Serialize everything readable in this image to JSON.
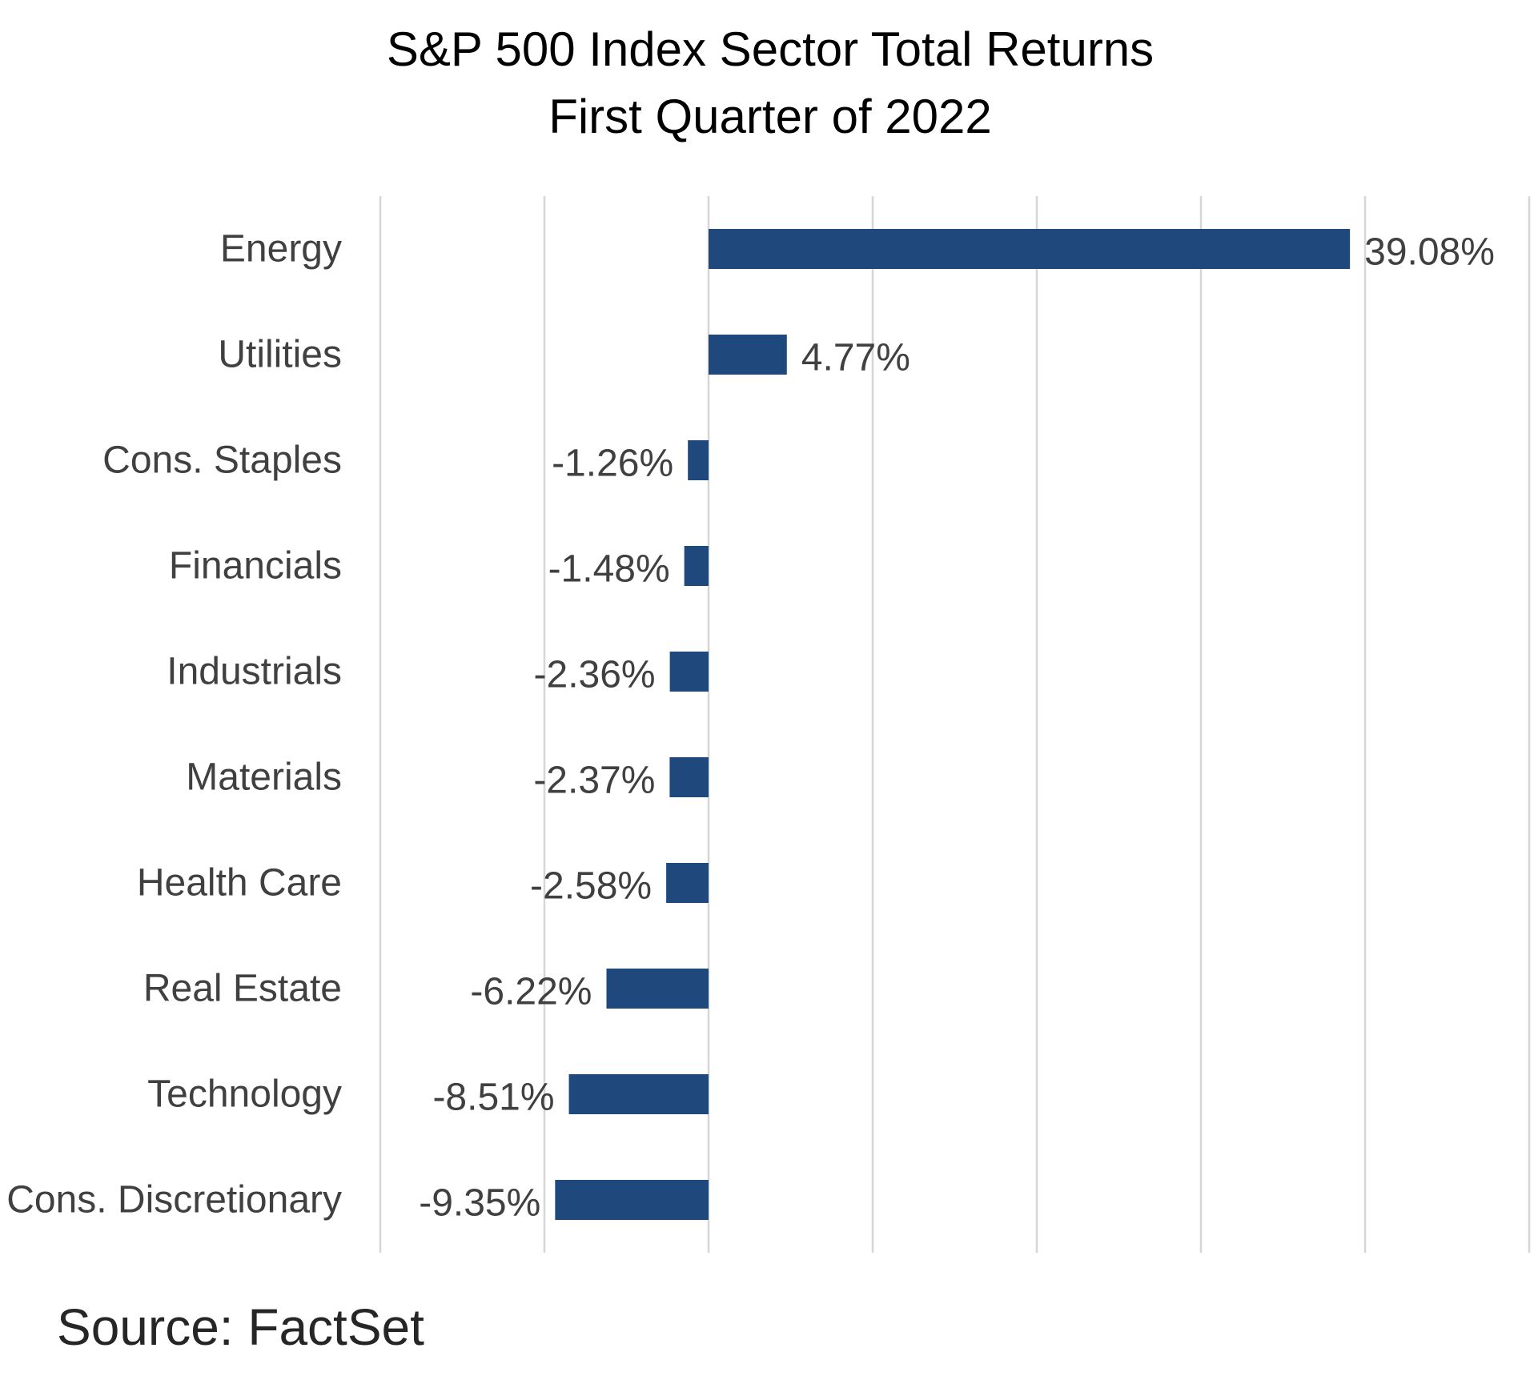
{
  "chart_data": {
    "type": "bar",
    "orientation": "horizontal",
    "title": "S&P 500 Index Sector Total Returns",
    "subtitle": "First Quarter of 2022",
    "categories": [
      "Energy",
      "Utilities",
      "Cons. Staples",
      "Financials",
      "Industrials",
      "Materials",
      "Health Care",
      "Real Estate",
      "Technology",
      "Cons. Discretionary"
    ],
    "values": [
      39.08,
      4.77,
      -1.26,
      -1.48,
      -2.36,
      -2.37,
      -2.58,
      -6.22,
      -8.51,
      -9.35
    ],
    "data_labels": [
      "39.08%",
      "4.77%",
      "-1.26%",
      "-1.48%",
      "-2.36%",
      "-2.37%",
      "-2.58%",
      "-6.22%",
      "-8.51%",
      "-9.35%"
    ],
    "xlim": [
      -20,
      50
    ],
    "grid_step": 10,
    "grid": true,
    "legend": "none",
    "bar_color": "#1f497d",
    "xlabel": "",
    "ylabel": ""
  },
  "source": "Source: FactSet"
}
